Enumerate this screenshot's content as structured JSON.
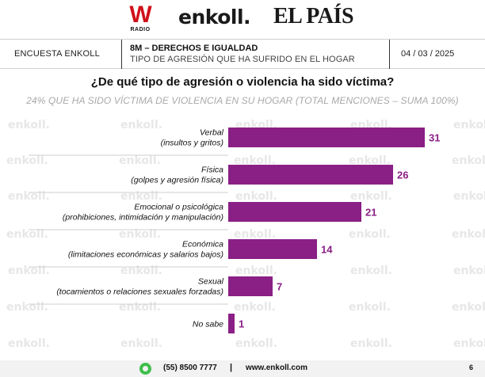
{
  "logos": {
    "w_letter": "W",
    "w_sub": "RADIO",
    "enkoll": "enkoll.",
    "elpais": "EL PAÍS"
  },
  "header": {
    "left": "ENCUESTA ENKOLL",
    "mid_title": "8M – DERECHOS E IGUALDAD",
    "mid_subtitle": "TIPO DE AGRESIÓN QUE HA SUFRIDO EN EL HOGAR",
    "date": "04 / 03 / 2025"
  },
  "watermark": "enkoll.",
  "chart_data": {
    "type": "bar",
    "orientation": "horizontal",
    "title": "¿De qué tipo de agresión o violencia ha sido víctima?",
    "subtitle": "24% QUE HA SIDO VÍCTIMA DE VIOLENCIA EN SU HOGAR (TOTAL MENCIONES – SUMA 100%)",
    "categories": [
      {
        "line1": "Verbal",
        "line2": "(insultos y gritos)"
      },
      {
        "line1": "Física",
        "line2": "(golpes y agresión física)"
      },
      {
        "line1": "Emocional o psicológica",
        "line2": "(prohibiciones, intimidación y manipulación)"
      },
      {
        "line1": "Económica",
        "line2": "(limitaciones económicas y salarios bajos)"
      },
      {
        "line1": "Sexual",
        "line2": "(tocamientos o relaciones sexuales forzadas)"
      },
      {
        "line1": "No sabe",
        "line2": ""
      }
    ],
    "values": [
      31,
      26,
      21,
      14,
      7,
      1
    ],
    "xlim": [
      0,
      31
    ],
    "bar_color": "#8a1f86",
    "value_color": "#8a1f86",
    "grid": false,
    "legend": "none"
  },
  "footer": {
    "phone": "(55) 8500 7777",
    "separator": "|",
    "url": "www.enkoll.com",
    "page": "6"
  }
}
